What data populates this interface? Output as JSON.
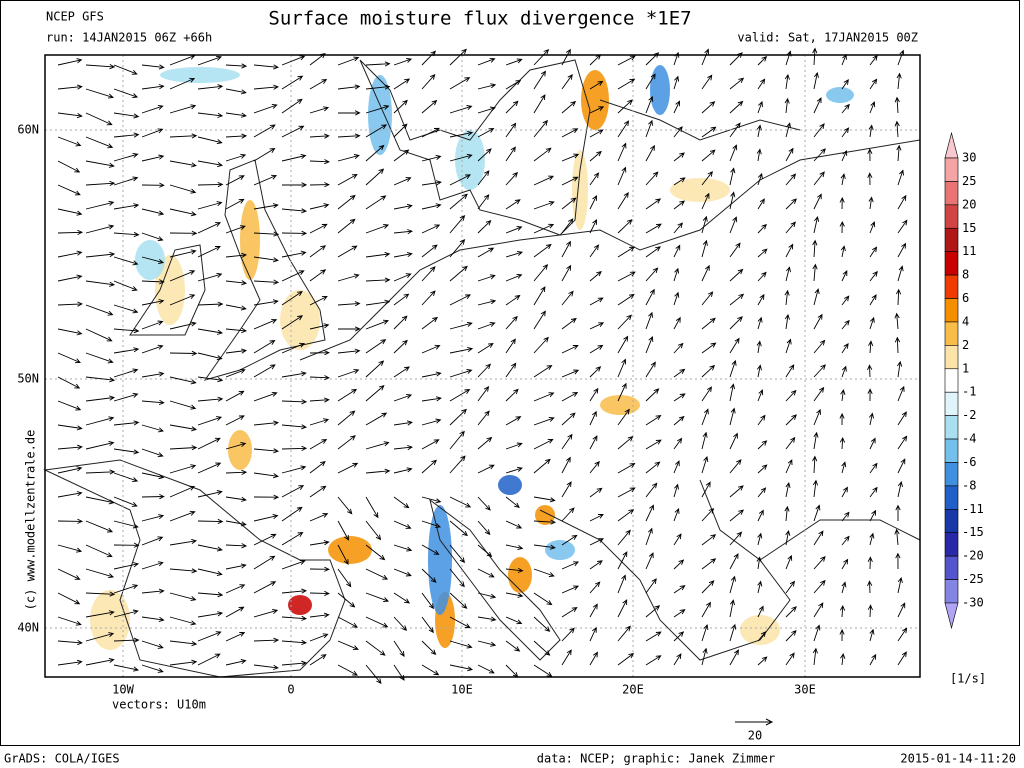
{
  "header": {
    "model": "NCEP GFS",
    "title": "Surface moisture flux divergence *1E7",
    "run": "run: 14JAN2015 06Z +66h",
    "valid": "valid: Sat, 17JAN2015 00Z"
  },
  "axes": {
    "lat_labels": [
      "60N",
      "50N",
      "40N"
    ],
    "lon_labels": [
      "10W",
      "0",
      "10E",
      "20E",
      "30E"
    ],
    "vectors": "vectors: U10m"
  },
  "colorbar": {
    "levels": [
      30,
      25,
      20,
      15,
      11,
      8,
      6,
      4,
      2,
      1,
      -1,
      -2,
      -4,
      -6,
      -8,
      -11,
      -15,
      -20,
      -25,
      -30
    ],
    "colors": [
      "#f8c8d0",
      "#f4a4a4",
      "#e87474",
      "#d04444",
      "#b01818",
      "#c80000",
      "#f03c00",
      "#f49000",
      "#f8bc48",
      "#fce4a8",
      "#ffffff",
      "#e0f4fc",
      "#a8e0f0",
      "#74c0ec",
      "#4090e0",
      "#2060c8",
      "#1838a8",
      "#2828a8",
      "#5454cc",
      "#8484e4",
      "#b0a4f4"
    ],
    "unit": "[1/s]"
  },
  "reference_vector": "20",
  "credit": "(c) www.modellzentrale.de",
  "footer": {
    "left": "GrADS: COLA/IGES",
    "center": "data: NCEP; graphic: Janek Zimmer",
    "right": "2015-01-14-11:20"
  }
}
